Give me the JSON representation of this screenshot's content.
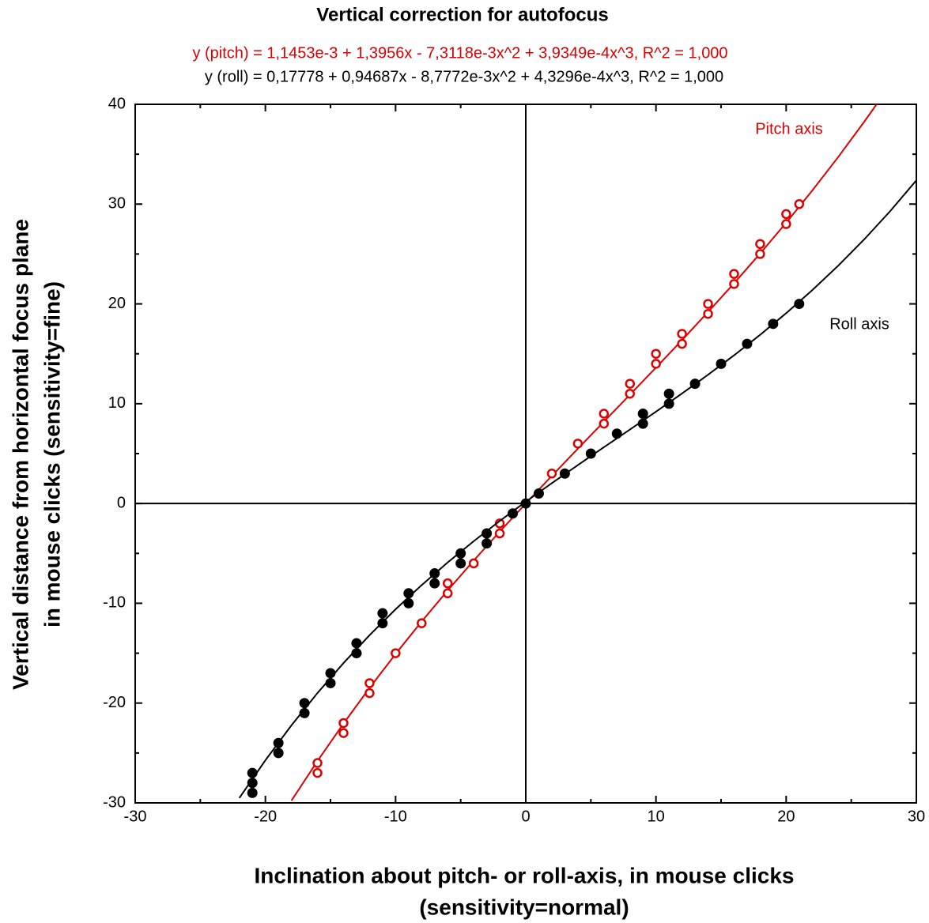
{
  "chart_data": {
    "type": "scatter",
    "title": "Vertical correction for autofocus",
    "xlabel": [
      "Inclination about pitch- or roll-axis, in mouse clicks",
      "(sensitivity=normal)"
    ],
    "ylabel": [
      "Vertical distance from horizontal focus plane",
      "in mouse clicks (sensitivity=fine)"
    ],
    "xlim": [
      -30,
      30
    ],
    "xticks": [
      -30,
      -20,
      -10,
      0,
      10,
      20,
      30
    ],
    "ylim": [
      -30,
      40
    ],
    "yticks": [
      -30,
      -20,
      -10,
      0,
      10,
      20,
      30,
      40
    ],
    "series": [
      {
        "name": "Pitch axis",
        "color": "#dd0000",
        "marker": "open",
        "x": [
          -16,
          -16,
          -14,
          -14,
          -12,
          -12,
          -10,
          -8,
          -6,
          -6,
          -4,
          -2,
          -2,
          2,
          4,
          6,
          6,
          8,
          8,
          10,
          10,
          12,
          12,
          14,
          14,
          16,
          16,
          18,
          18,
          20,
          20,
          21
        ],
        "values": [
          -26,
          -27,
          -22,
          -23,
          -18,
          -19,
          -15,
          -12,
          -8,
          -9,
          -6,
          -2,
          -3,
          3,
          6,
          8,
          9,
          11,
          12,
          14,
          15,
          16,
          17,
          19,
          20,
          22,
          23,
          25,
          26,
          28,
          29,
          30
        ],
        "fit": {
          "equation": "y (pitch) = 1,1453e-3 + 1,3956x - 7,3118e-3x^2 + 3,9349e-4x^3, R^2 = 1,000",
          "x": [
            -18,
            -16,
            -14,
            -12,
            -10,
            -8,
            -6,
            -4,
            -2,
            0,
            2,
            4,
            6,
            8,
            10,
            12,
            14,
            16,
            18,
            20,
            22,
            24,
            26,
            27
          ],
          "values": [
            -29.78,
            -25.81,
            -22.05,
            -18.48,
            -15.08,
            -11.83,
            -8.72,
            -5.72,
            -2.82,
            0,
            2.77,
            5.49,
            8.2,
            10.9,
            13.62,
            16.37,
            19.19,
            22.07,
            25.05,
            28.13,
            31.35,
            34.72,
            38.26,
            40.1
          ]
        }
      },
      {
        "name": "Roll axis",
        "color": "#000000",
        "marker": "filled",
        "x": [
          -21,
          -21,
          -21,
          -19,
          -19,
          -17,
          -17,
          -15,
          -15,
          -13,
          -13,
          -11,
          -11,
          -9,
          -9,
          -7,
          -7,
          -5,
          -5,
          -3,
          -3,
          -1,
          0,
          1,
          3,
          5,
          7,
          9,
          9,
          11,
          11,
          13,
          15,
          17,
          19,
          21
        ],
        "values": [
          -27,
          -28,
          -29,
          -24,
          -25,
          -20,
          -21,
          -17,
          -18,
          -14,
          -15,
          -11,
          -12,
          -9,
          -10,
          -7,
          -8,
          -5,
          -6,
          -3,
          -4,
          -1,
          0,
          1,
          3,
          5,
          7,
          8,
          9,
          10,
          11,
          12,
          14,
          16,
          18,
          20
        ],
        "fit": {
          "equation": "y (roll) = 0,17778 + 0,94687x - 8,7772e-3x^2 + 4,3296e-4x^3, R^2 = 1,000",
          "x": [
            -22,
            -20,
            -18,
            -16,
            -14,
            -12,
            -10,
            -8,
            -6,
            -4,
            -2,
            0,
            2,
            4,
            6,
            8,
            10,
            12,
            14,
            16,
            18,
            20,
            22,
            24,
            26,
            28,
            30
          ],
          "values": [
            -29.51,
            -25.73,
            -22.23,
            -18.99,
            -15.99,
            -13.2,
            -10.6,
            -8.18,
            -5.91,
            -3.78,
            -1.75,
            0.18,
            2.04,
            3.85,
            5.64,
            7.41,
            9.2,
            11.02,
            12.9,
            14.85,
            16.9,
            19.07,
            21.37,
            23.83,
            26.47,
            29.31,
            32.38
          ]
        }
      }
    ]
  }
}
